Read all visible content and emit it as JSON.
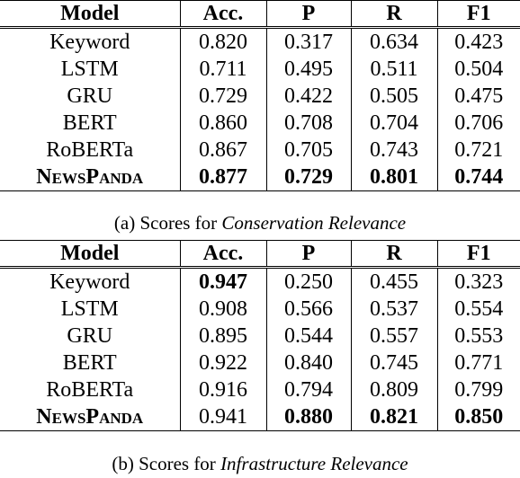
{
  "headers": [
    "Model",
    "Acc.",
    "P",
    "R",
    "F1"
  ],
  "tables": [
    {
      "caption_prefix": "(a) Scores for ",
      "caption_topic": "Conservation Relevance",
      "rows": [
        {
          "model": "Keyword",
          "acc": "0.820",
          "p": "0.317",
          "r": "0.634",
          "f1": "0.423"
        },
        {
          "model": "LSTM",
          "acc": "0.711",
          "p": "0.495",
          "r": "0.511",
          "f1": "0.504"
        },
        {
          "model": "GRU",
          "acc": "0.729",
          "p": "0.422",
          "r": "0.505",
          "f1": "0.475"
        },
        {
          "model": "BERT",
          "acc": "0.860",
          "p": "0.708",
          "r": "0.704",
          "f1": "0.706"
        },
        {
          "model": "RoBERTa",
          "acc": "0.867",
          "p": "0.705",
          "r": "0.743",
          "f1": "0.721"
        },
        {
          "model": "NewsPanda",
          "acc": "0.877",
          "p": "0.729",
          "r": "0.801",
          "f1": "0.744"
        }
      ]
    },
    {
      "caption_prefix": "(b) Scores for ",
      "caption_topic": "Infrastructure Relevance",
      "rows": [
        {
          "model": "Keyword",
          "acc": "0.947",
          "p": "0.250",
          "r": "0.455",
          "f1": "0.323"
        },
        {
          "model": "LSTM",
          "acc": "0.908",
          "p": "0.566",
          "r": "0.537",
          "f1": "0.554"
        },
        {
          "model": "GRU",
          "acc": "0.895",
          "p": "0.544",
          "r": "0.557",
          "f1": "0.553"
        },
        {
          "model": "BERT",
          "acc": "0.922",
          "p": "0.840",
          "r": "0.745",
          "f1": "0.771"
        },
        {
          "model": "RoBERTa",
          "acc": "0.916",
          "p": "0.794",
          "r": "0.809",
          "f1": "0.799"
        },
        {
          "model": "NewsPanda",
          "acc": "0.941",
          "p": "0.880",
          "r": "0.821",
          "f1": "0.850"
        }
      ]
    }
  ]
}
